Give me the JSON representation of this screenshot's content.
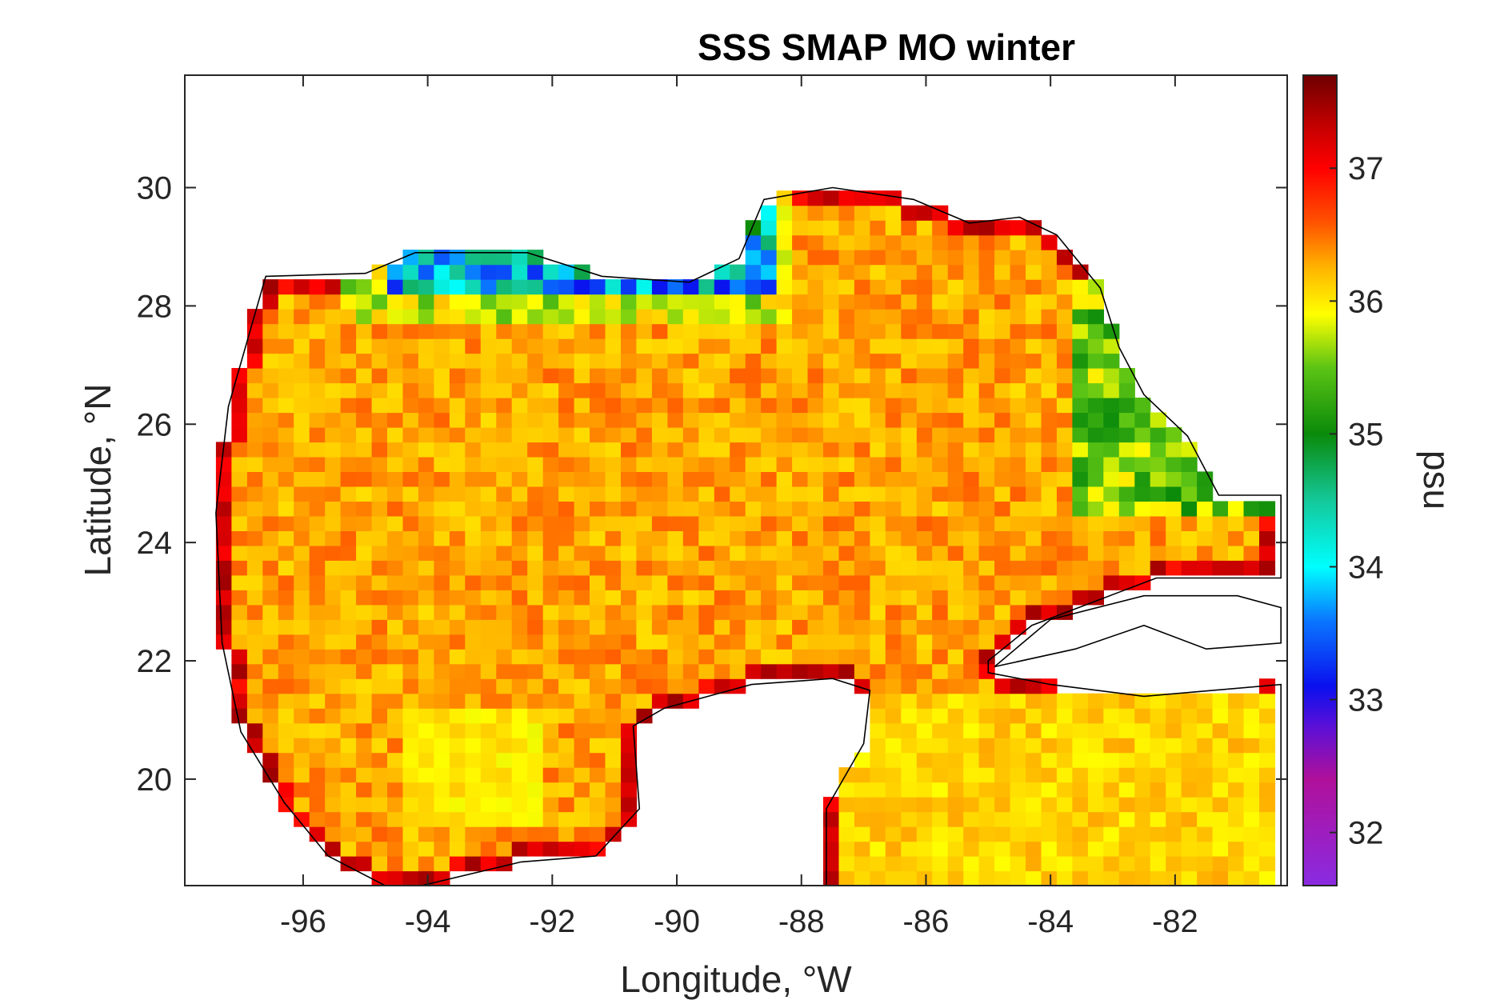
{
  "chart_data": {
    "type": "heatmap",
    "title": "SSS SMAP MO winter",
    "xlabel": "Longitude, °W",
    "ylabel": "Latitude, °N",
    "xlim": [
      -97.9,
      -80.2
    ],
    "ylim": [
      18.2,
      31.9
    ],
    "x_ticks": [
      -96,
      -94,
      -92,
      -90,
      -88,
      -86,
      -84,
      -82
    ],
    "x_tick_labels": [
      "-96",
      "-94",
      "-92",
      "-90",
      "-88",
      "-86",
      "-84",
      "-82"
    ],
    "y_ticks": [
      20,
      22,
      24,
      26,
      28,
      30
    ],
    "y_tick_labels": [
      "20",
      "22",
      "24",
      "26",
      "28",
      "30"
    ],
    "grid_resolution_deg": 0.25,
    "colorbar": {
      "label": "psu",
      "range": [
        31.6,
        37.7
      ],
      "ticks": [
        32,
        33,
        34,
        35,
        36,
        37
      ],
      "tick_labels": [
        "32",
        "33",
        "34",
        "35",
        "36",
        "37"
      ]
    },
    "colormap_stops": [
      {
        "v": 31.6,
        "c": "#8a2be2"
      },
      {
        "v": 32.4,
        "c": "#b0109a"
      },
      {
        "v": 32.8,
        "c": "#5a10d8"
      },
      {
        "v": 33.1,
        "c": "#0a10ee"
      },
      {
        "v": 33.6,
        "c": "#0a78ff"
      },
      {
        "v": 34.0,
        "c": "#00ffff"
      },
      {
        "v": 34.5,
        "c": "#14c89a"
      },
      {
        "v": 35.0,
        "c": "#0a8a0a"
      },
      {
        "v": 35.5,
        "c": "#5cc414"
      },
      {
        "v": 35.9,
        "c": "#ffff00"
      },
      {
        "v": 36.25,
        "c": "#ffb400"
      },
      {
        "v": 36.6,
        "c": "#ff5000"
      },
      {
        "v": 37.0,
        "c": "#ff0000"
      },
      {
        "v": 37.3,
        "c": "#c80000"
      },
      {
        "v": 37.7,
        "c": "#6e0000"
      }
    ],
    "regions": {
      "gulf_interior_psu": 36.3,
      "northern_shelf_psu": 33.0,
      "west_florida_shelf_psu": 35.5,
      "yucatan_channel_psu": 36.1,
      "coastal_rim_psu": 37.2
    }
  }
}
